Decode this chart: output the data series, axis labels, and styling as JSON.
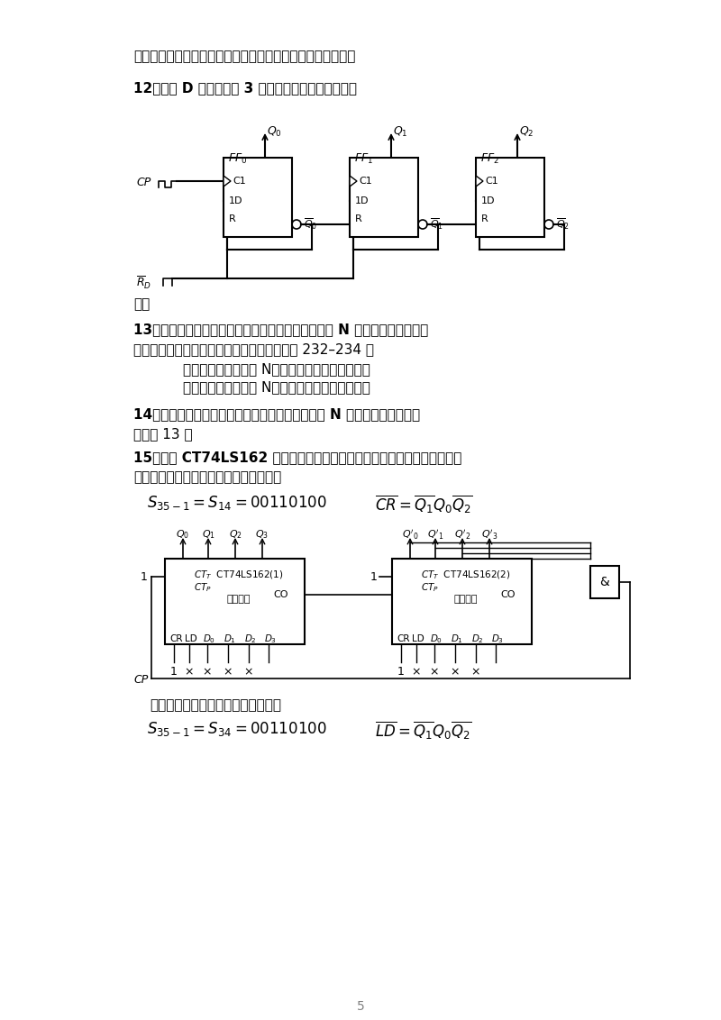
{
  "page_bg": "#ffffff",
  "text_color": "#000000",
  "line1": "特点是功能完善，使用灵活。能进行二进制数的加／减运算。",
  "q12": "12．试用 D 触发器构成 3 位异步二进制减法计数器。",
  "ans_label": "答：",
  "q13": "13．试叙述用同步清零控制端和同步置数控制端构成 N 进制计数器的方法。",
  "ans13a": "答：详见杨志忠编《数字电子技术基础》教材 232–234 页",
  "ans13b": "利用反馈归零法获得 N（任意正整数）进制计数器",
  "ans13c": "利用反馈置数法获得 N（任意正整数）进制计数器",
  "q14": "14．试述用异步清零控制端和异步置数控制端构成 N 进制计数器的方法。",
  "ans14": "答：同 13 题",
  "q15": "15．试用 CT74LS162 的同步清零和同步置数功能构成三十五进制计数器。",
  "ans15_label": "答：同步清零功能构成三十五进制计数器",
  "ans15_sync_label": "同步置数功能构成三十五进制计数器"
}
